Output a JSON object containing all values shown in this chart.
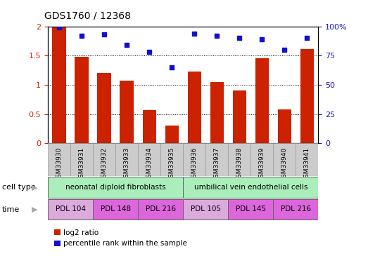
{
  "title": "GDS1760 / 12368",
  "samples": [
    "GSM33930",
    "GSM33931",
    "GSM33932",
    "GSM33933",
    "GSM33934",
    "GSM33935",
    "GSM33936",
    "GSM33937",
    "GSM33938",
    "GSM33939",
    "GSM33940",
    "GSM33941"
  ],
  "log2_ratio": [
    2.0,
    1.48,
    1.2,
    1.07,
    0.57,
    0.31,
    1.23,
    1.05,
    0.9,
    1.45,
    0.58,
    1.61
  ],
  "percentile_rank": [
    99,
    92,
    93,
    84,
    78,
    65,
    94,
    92,
    90,
    89,
    80,
    90
  ],
  "bar_color": "#cc2200",
  "dot_color": "#1111cc",
  "ylim_left": [
    0,
    2
  ],
  "ylim_right": [
    0,
    100
  ],
  "yticks_left": [
    0,
    0.5,
    1.0,
    1.5,
    2.0
  ],
  "ytick_labels_left": [
    "0",
    "0.5",
    "1",
    "1.5",
    "2"
  ],
  "yticks_right": [
    0,
    25,
    50,
    75,
    100
  ],
  "ytick_labels_right": [
    "0",
    "25",
    "50",
    "75",
    "100%"
  ],
  "legend_bar_label": "log2 ratio",
  "legend_dot_label": "percentile rank within the sample",
  "cell_type_label": "cell type",
  "time_label": "time",
  "tick_label_color_left": "#cc2200",
  "tick_label_color_right": "#1111cc",
  "bg_color": "#ffffff",
  "xticklabel_bg": "#cccccc",
  "cell_type_groups": [
    {
      "label": "neonatal diploid fibroblasts",
      "start": 0,
      "end": 6,
      "color": "#aaeebb"
    },
    {
      "label": "umbilical vein endothelial cells",
      "start": 6,
      "end": 12,
      "color": "#aaeebb"
    }
  ],
  "time_groups": [
    {
      "label": "PDL 104",
      "start": 0,
      "end": 2,
      "color": "#ddaadd"
    },
    {
      "label": "PDL 148",
      "start": 2,
      "end": 4,
      "color": "#dd66dd"
    },
    {
      "label": "PDL 216",
      "start": 4,
      "end": 6,
      "color": "#dd66dd"
    },
    {
      "label": "PDL 105",
      "start": 6,
      "end": 8,
      "color": "#ddaadd"
    },
    {
      "label": "PDL 145",
      "start": 8,
      "end": 10,
      "color": "#dd66dd"
    },
    {
      "label": "PDL 216",
      "start": 10,
      "end": 12,
      "color": "#dd66dd"
    }
  ]
}
